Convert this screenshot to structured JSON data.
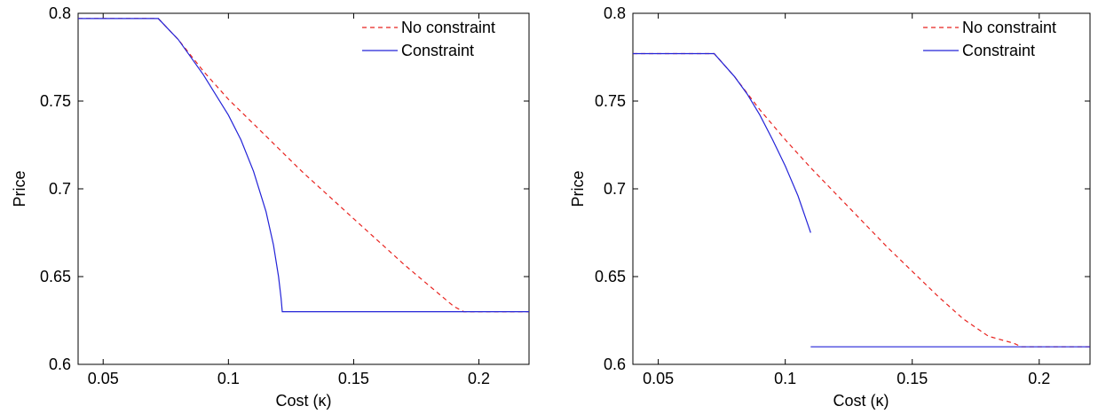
{
  "chart_data": [
    {
      "type": "line",
      "xlabel": "Cost (κ)",
      "ylabel": "Price",
      "xlim": [
        0.04,
        0.22
      ],
      "ylim": [
        0.6,
        0.8
      ],
      "xticks": [
        0.05,
        0.1,
        0.15,
        0.2
      ],
      "xtick_labels": [
        "0.05",
        "0.1",
        "0.15",
        "0.2"
      ],
      "yticks": [
        0.6,
        0.65,
        0.7,
        0.75,
        0.8
      ],
      "ytick_labels": [
        "0.6",
        "0.65",
        "0.7",
        "0.75",
        "0.8"
      ],
      "grid": false,
      "legend_position": "top-right",
      "series": [
        {
          "name": "No constraint",
          "style": "dashed",
          "color": "#e8231f",
          "x": [
            0.04,
            0.072,
            0.08,
            0.09,
            0.1,
            0.11,
            0.12,
            0.13,
            0.14,
            0.15,
            0.16,
            0.17,
            0.18,
            0.19,
            0.194,
            0.22
          ],
          "y": [
            0.797,
            0.797,
            0.785,
            0.767,
            0.751,
            0.737,
            0.723,
            0.709,
            0.696,
            0.683,
            0.67,
            0.657,
            0.645,
            0.633,
            0.63,
            0.63
          ]
        },
        {
          "name": "Constraint",
          "style": "solid",
          "color": "#2323d8",
          "segments": [
            {
              "x": [
                0.04,
                0.072,
                0.08,
                0.09,
                0.1,
                0.105,
                0.11,
                0.115,
                0.118,
                0.12,
                0.121,
                0.1215,
                0.22
              ],
              "y": [
                0.797,
                0.797,
                0.785,
                0.765,
                0.742,
                0.728,
                0.71,
                0.687,
                0.668,
                0.65,
                0.638,
                0.63,
                0.63
              ]
            }
          ]
        }
      ]
    },
    {
      "type": "line",
      "xlabel": "Cost (κ)",
      "ylabel": "Price",
      "xlim": [
        0.04,
        0.22
      ],
      "ylim": [
        0.6,
        0.8
      ],
      "xticks": [
        0.05,
        0.1,
        0.15,
        0.2
      ],
      "xtick_labels": [
        "0.05",
        "0.1",
        "0.15",
        "0.2"
      ],
      "yticks": [
        0.6,
        0.65,
        0.7,
        0.75,
        0.8
      ],
      "ytick_labels": [
        "0.6",
        "0.65",
        "0.7",
        "0.75",
        "0.8"
      ],
      "grid": false,
      "legend_position": "top-right",
      "series": [
        {
          "name": "No constraint",
          "style": "dashed",
          "color": "#e8231f",
          "x": [
            0.04,
            0.072,
            0.08,
            0.09,
            0.1,
            0.11,
            0.12,
            0.13,
            0.14,
            0.15,
            0.16,
            0.17,
            0.18,
            0.19,
            0.193,
            0.22
          ],
          "y": [
            0.777,
            0.777,
            0.764,
            0.745,
            0.728,
            0.712,
            0.697,
            0.682,
            0.667,
            0.653,
            0.639,
            0.626,
            0.616,
            0.612,
            0.61,
            0.61
          ]
        },
        {
          "name": "Constraint",
          "style": "solid",
          "color": "#2323d8",
          "segments": [
            {
              "x": [
                0.04,
                0.072,
                0.08,
                0.085,
                0.09,
                0.095,
                0.1,
                0.105,
                0.11
              ],
              "y": [
                0.777,
                0.777,
                0.764,
                0.754,
                0.742,
                0.728,
                0.713,
                0.696,
                0.675
              ]
            },
            {
              "x": [
                0.11,
                0.22
              ],
              "y": [
                0.61,
                0.61
              ]
            }
          ]
        }
      ]
    }
  ]
}
